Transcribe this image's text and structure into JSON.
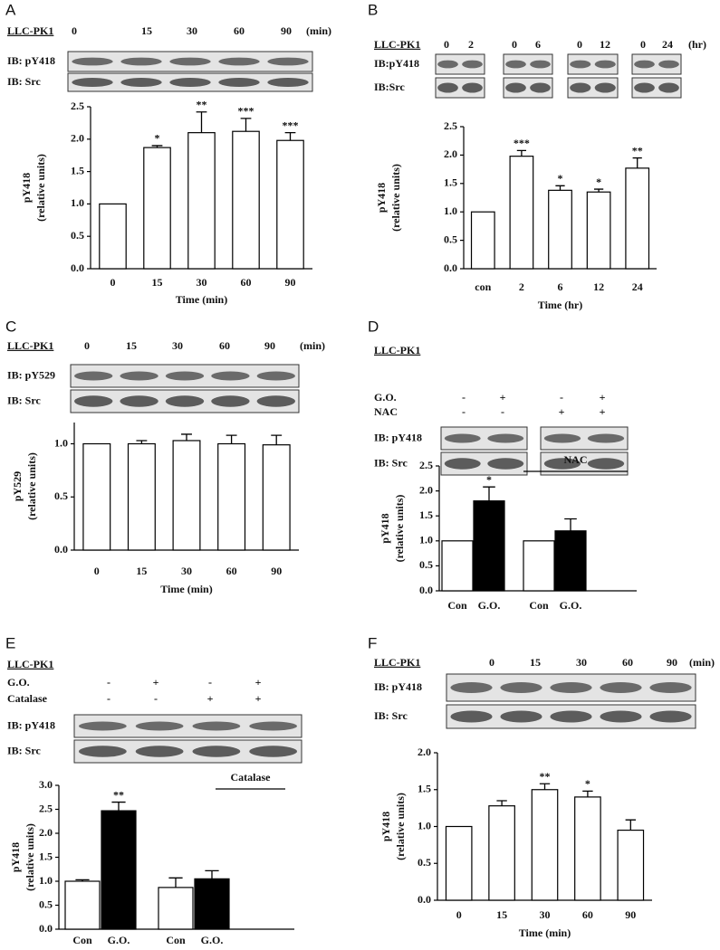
{
  "chart_data": [
    {
      "panel": "A",
      "type": "bar",
      "blot": {
        "cell_line": "LLC-PK1",
        "lanes": [
          "0",
          "15",
          "30",
          "60",
          "90"
        ],
        "unit": "(min)",
        "rows": [
          "IB: pY418",
          "IB: Src"
        ]
      },
      "ylabel": "pY418",
      "ylabel2": "(relative units)",
      "xlabel": "Time (min)",
      "categories": [
        "0",
        "15",
        "30",
        "60",
        "90"
      ],
      "values": [
        1.0,
        1.87,
        2.1,
        2.12,
        1.98
      ],
      "errors": [
        null,
        0.03,
        0.32,
        0.2,
        0.12
      ],
      "annotations": [
        null,
        "*",
        "**",
        "***",
        "***"
      ],
      "color": "#ffffff",
      "ylim": [
        0,
        2.5
      ],
      "yticks": [
        {
          "value": 0,
          "label": "0.0"
        },
        0.5,
        {
          "value": 1,
          "label": "1.0"
        },
        1.5,
        {
          "value": 2,
          "label": "2.0"
        },
        2.5
      ]
    },
    {
      "panel": "B",
      "type": "bar",
      "blot": {
        "cell_line": "LLC-PK1",
        "lanes": [
          "0",
          "2",
          "0",
          "6",
          "0",
          "12",
          "0",
          "24"
        ],
        "unit": "(hr)",
        "rows": [
          "IB:pY418",
          "IB:Src"
        ]
      },
      "ylabel": "pY418",
      "ylabel2": "(relative units)",
      "xlabel": "Time (hr)",
      "categories": [
        "con",
        "2",
        "6",
        "12",
        "24"
      ],
      "values": [
        1.0,
        1.98,
        1.38,
        1.35,
        1.77
      ],
      "errors": [
        null,
        0.1,
        0.08,
        0.05,
        0.18
      ],
      "annotations": [
        null,
        "***",
        "*",
        "*",
        "**"
      ],
      "color": "#ffffff",
      "ylim": [
        0,
        2.5
      ],
      "yticks": [
        {
          "value": 0,
          "label": "0.0"
        },
        0.5,
        {
          "value": 1,
          "label": "1.0"
        },
        1.5,
        {
          "value": 2,
          "label": "2.0"
        },
        2.5
      ]
    },
    {
      "panel": "C",
      "type": "bar",
      "blot": {
        "cell_line": "LLC-PK1",
        "lanes": [
          "0",
          "15",
          "30",
          "60",
          "90"
        ],
        "unit": "(min)",
        "rows": [
          "IB: pY529",
          "IB: Src"
        ]
      },
      "ylabel": "pY529",
      "ylabel2": "(relative units)",
      "xlabel": "Time (min)",
      "categories": [
        "0",
        "15",
        "30",
        "60",
        "90"
      ],
      "values": [
        1.0,
        1.0,
        1.03,
        1.0,
        0.99
      ],
      "errors": [
        null,
        0.03,
        0.06,
        0.08,
        0.09
      ],
      "color": "#ffffff",
      "ylim": [
        0,
        1.2
      ],
      "yticks": [
        {
          "value": 0,
          "label": "0.0"
        },
        0.5,
        {
          "value": 1,
          "label": "1.0"
        }
      ]
    },
    {
      "panel": "D",
      "type": "bar",
      "blot": {
        "cell_line": "LLC-PK1",
        "treatments": [
          {
            "name": "G.O.",
            "signs": [
              "-",
              "+",
              "-",
              "+"
            ]
          },
          {
            "name": "NAC",
            "signs": [
              "-",
              "-",
              "+",
              "+"
            ]
          }
        ],
        "rows": [
          "IB: pY418",
          "IB: Src"
        ]
      },
      "ylabel": "pY418",
      "ylabel2": "(relative units)",
      "bracket_label": "NAC",
      "categories": [
        "Con",
        "G.O.",
        "Con",
        "G.O."
      ],
      "values": [
        1.0,
        1.8,
        1.0,
        1.2
      ],
      "errors": [
        null,
        0.28,
        null,
        0.24
      ],
      "annotations": [
        null,
        "*",
        null,
        null
      ],
      "colors": [
        "#ffffff",
        "#000000",
        "#ffffff",
        "#000000"
      ],
      "ylim": [
        0,
        2.5
      ],
      "yticks": [
        {
          "value": 0,
          "label": "0.0"
        },
        0.5,
        {
          "value": 1,
          "label": "1.0"
        },
        1.5,
        {
          "value": 2,
          "label": "2.0"
        },
        2.5
      ]
    },
    {
      "panel": "E",
      "type": "bar",
      "blot": {
        "cell_line": "LLC-PK1",
        "treatments": [
          {
            "name": "G.O.",
            "signs": [
              "-",
              "+",
              "-",
              "+"
            ]
          },
          {
            "name": "Catalase",
            "signs": [
              "-",
              "-",
              "+",
              "+"
            ]
          }
        ],
        "rows": [
          "IB: pY418",
          "IB: Src"
        ]
      },
      "ylabel": "pY418",
      "ylabel2": "(relative units)",
      "bracket_label": "Catalase",
      "categories": [
        "Con",
        "G.O.",
        "Con",
        "G.O."
      ],
      "values": [
        1.0,
        2.47,
        0.87,
        1.05
      ],
      "errors": [
        0.03,
        0.18,
        0.2,
        0.17
      ],
      "annotations": [
        null,
        "**",
        null,
        null
      ],
      "colors": [
        "#ffffff",
        "#000000",
        "#ffffff",
        "#000000"
      ],
      "ylim": [
        0,
        3
      ],
      "yticks": [
        {
          "value": 0,
          "label": "0.0"
        },
        0.5,
        {
          "value": 1,
          "label": "1.0"
        },
        1.5,
        {
          "value": 2,
          "label": "2.0"
        },
        2.5,
        {
          "value": 3,
          "label": "3.0"
        }
      ]
    },
    {
      "panel": "F",
      "type": "bar",
      "blot": {
        "cell_line": "LLC-PK1",
        "lanes": [
          "0",
          "15",
          "30",
          "60",
          "90"
        ],
        "unit": "(min)",
        "rows": [
          "IB: pY418",
          "IB: Src"
        ]
      },
      "ylabel": "pY418",
      "ylabel2": "(relative units)",
      "xlabel": "Time (min)",
      "categories": [
        "0",
        "15",
        "30",
        "60",
        "90"
      ],
      "values": [
        1.0,
        1.28,
        1.5,
        1.4,
        0.95
      ],
      "errors": [
        null,
        0.07,
        0.08,
        0.08,
        0.14
      ],
      "annotations": [
        null,
        null,
        "**",
        "*",
        null
      ],
      "color": "#ffffff",
      "ylim": [
        0,
        2
      ],
      "yticks": [
        {
          "value": 0,
          "label": "0.0"
        },
        0.5,
        {
          "value": 1,
          "label": "1.0"
        },
        1.5,
        {
          "value": 2,
          "label": "2.0"
        }
      ]
    }
  ]
}
